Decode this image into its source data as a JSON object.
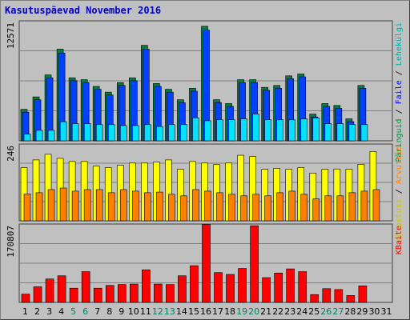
{
  "title": "Kasutuspäevad November 2016",
  "colors": {
    "hits": "#00cccc",
    "pages": "#0000ff",
    "files": "#00ffff",
    "visits": "#ffff00",
    "sites": "#ff8000",
    "kbytes": "#ff0000",
    "weekend_label": "#008060",
    "weekday_label": "#000000"
  },
  "panels": {
    "top": {
      "ymax_label": "12571",
      "legend": [
        {
          "text": "Päringuid",
          "color": "#009040"
        },
        {
          "text": " / ",
          "color": "#000000"
        },
        {
          "text": "Faile",
          "color": "#0000ff"
        },
        {
          "text": " / ",
          "color": "#000000"
        },
        {
          "text": "Lehekülgi",
          "color": "#00aaaa"
        }
      ]
    },
    "middle": {
      "ymax_label": "246",
      "legend": [
        {
          "text": "Külastusi",
          "color": "#c8c800"
        },
        {
          "text": " / ",
          "color": "#000000"
        },
        {
          "text": "Arvuteid",
          "color": "#ff8000"
        }
      ]
    },
    "bottom": {
      "ymax_label": "170807",
      "legend": [
        {
          "text": "KBaite",
          "color": "#ff0000"
        }
      ]
    }
  },
  "chart_data": {
    "type": "bar",
    "title": "Kasutuspäevad November 2016",
    "categories": [
      "1",
      "2",
      "3",
      "4",
      "5",
      "6",
      "7",
      "8",
      "9",
      "10",
      "11",
      "12",
      "13",
      "14",
      "15",
      "16",
      "17",
      "18",
      "19",
      "20",
      "21",
      "22",
      "23",
      "24",
      "25",
      "26",
      "27",
      "28",
      "29",
      "30",
      "31"
    ],
    "weekend_days": [
      "5",
      "6",
      "12",
      "13",
      "19",
      "20",
      "26",
      "27"
    ],
    "top_ymax": 12571,
    "middle_ymax": 246,
    "bottom_ymax": 170807,
    "series": [
      {
        "name": "Päringuid",
        "panel": "top",
        "values": [
          3300,
          4600,
          6900,
          9600,
          6600,
          6400,
          5700,
          5100,
          6100,
          6600,
          10000,
          6000,
          5400,
          4300,
          5500,
          12000,
          4300,
          3900,
          6400,
          6400,
          5600,
          5800,
          6800,
          7000,
          2800,
          3900,
          3700,
          2300,
          5800,
          null,
          null
        ]
      },
      {
        "name": "Faile",
        "panel": "top",
        "values": [
          3000,
          4300,
          6600,
          9200,
          6300,
          6100,
          5400,
          4800,
          5800,
          6300,
          9600,
          5700,
          5100,
          4000,
          5200,
          11600,
          4000,
          3600,
          6100,
          6100,
          5300,
          5500,
          6500,
          6700,
          2500,
          3600,
          3400,
          2000,
          5500,
          null,
          null
        ]
      },
      {
        "name": "Lehekülgi",
        "panel": "top",
        "values": [
          700,
          1100,
          1100,
          2000,
          1800,
          1800,
          1700,
          1700,
          1600,
          1600,
          1700,
          1500,
          1700,
          1700,
          2400,
          2100,
          2200,
          2200,
          2300,
          2800,
          2200,
          2200,
          2200,
          2300,
          2400,
          1800,
          1800,
          1700,
          1700,
          null,
          null
        ]
      },
      {
        "name": "Külastusi",
        "panel": "middle",
        "values": [
          170,
          195,
          213,
          200,
          190,
          190,
          175,
          170,
          178,
          185,
          185,
          188,
          195,
          165,
          190,
          185,
          180,
          185,
          210,
          206,
          165,
          168,
          165,
          170,
          153,
          165,
          166,
          165,
          181,
          222,
          null
        ]
      },
      {
        "name": "Arvuteid",
        "panel": "middle",
        "values": [
          86,
          90,
          100,
          105,
          95,
          100,
          100,
          90,
          100,
          95,
          90,
          92,
          85,
          80,
          100,
          95,
          90,
          85,
          80,
          85,
          80,
          90,
          95,
          85,
          70,
          80,
          80,
          90,
          95,
          100,
          null
        ]
      },
      {
        "name": "KBaite",
        "panel": "bottom",
        "values": [
          18000,
          34000,
          51000,
          58000,
          31000,
          67000,
          31000,
          37000,
          39000,
          40000,
          71000,
          40000,
          39000,
          58000,
          80000,
          170000,
          65000,
          61000,
          74000,
          167000,
          54000,
          64000,
          73000,
          67000,
          17000,
          30000,
          28000,
          15000,
          36000,
          null,
          null
        ]
      }
    ]
  }
}
